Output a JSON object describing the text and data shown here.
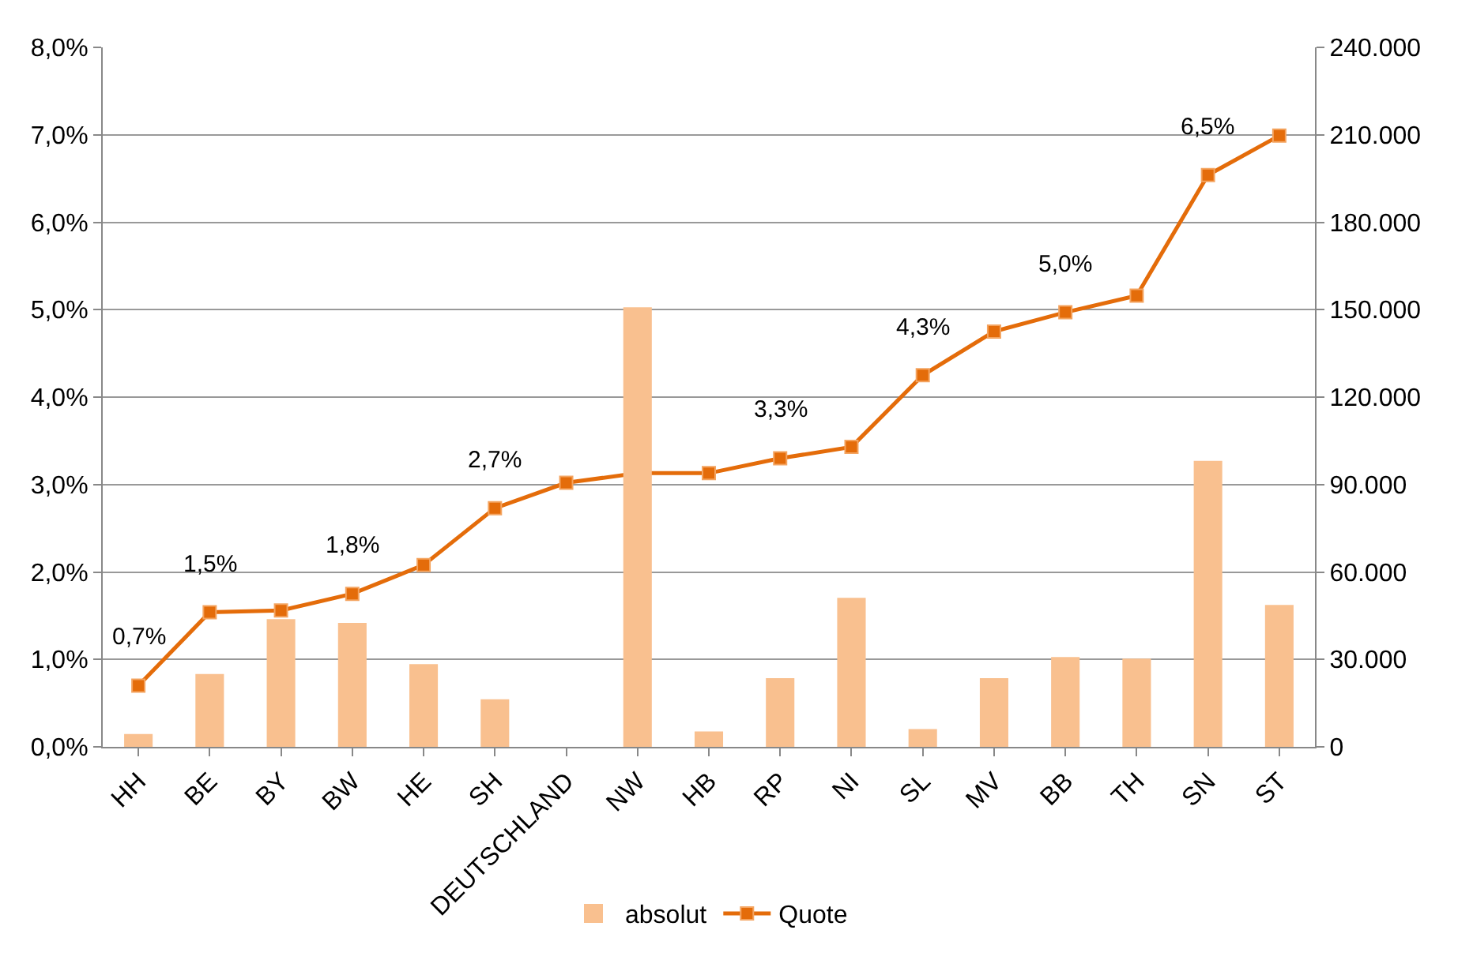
{
  "chart_data": {
    "type": "bar",
    "categories": [
      "HH",
      "BE",
      "BY",
      "BW",
      "HE",
      "SH",
      "DEUTSCHLAND",
      "NW",
      "HB",
      "RP",
      "NI",
      "SL",
      "MV",
      "BB",
      "TH",
      "SN",
      "ST"
    ],
    "series": [
      {
        "name": "absolut",
        "axis": "y2",
        "color": "#f9c08f",
        "values": [
          4400,
          25000,
          43800,
          42500,
          28400,
          16300,
          null,
          150800,
          5300,
          23600,
          51100,
          6100,
          23600,
          30800,
          30300,
          98100,
          48700
        ]
      },
      {
        "name": "Quote",
        "type": "line",
        "axis": "y",
        "color": "#e46c0a",
        "marker": "square",
        "values": [
          0.7,
          1.54,
          1.56,
          1.75,
          2.08,
          2.73,
          3.02,
          3.13,
          3.13,
          3.3,
          3.43,
          4.25,
          4.75,
          4.97,
          5.16,
          6.54,
          6.99
        ],
        "value_labels": [
          "0,7%",
          "1,5%",
          null,
          "1,8%",
          null,
          "2,7%",
          null,
          null,
          null,
          "3,3%",
          null,
          "4,3%",
          null,
          "5,0%",
          null,
          "6,5%",
          null
        ]
      }
    ],
    "ylim": [
      0,
      8
    ],
    "yticks": [
      {
        "value": 0,
        "label": "0,0%"
      },
      {
        "value": 1,
        "label": "1,0%"
      },
      {
        "value": 2,
        "label": "2,0%"
      },
      {
        "value": 3,
        "label": "3,0%"
      },
      {
        "value": 4,
        "label": "4,0%"
      },
      {
        "value": 5,
        "label": "5,0%"
      },
      {
        "value": 6,
        "label": "6,0%"
      },
      {
        "value": 7,
        "label": "7,0%"
      },
      {
        "value": 8,
        "label": "8,0%"
      }
    ],
    "y2lim": [
      0,
      240000
    ],
    "y2ticks": [
      0,
      {
        "value": 30000,
        "label": "30.000"
      },
      {
        "value": 60000,
        "label": "60.000"
      },
      {
        "value": 90000,
        "label": "90.000"
      },
      {
        "value": 120000,
        "label": "120.000"
      },
      {
        "value": 150000,
        "label": "150.000"
      },
      {
        "value": 180000,
        "label": "180.000"
      },
      {
        "value": 210000,
        "label": "210.000"
      },
      {
        "value": 240000,
        "label": "240.000"
      }
    ],
    "grid": "y",
    "legend": "bottom"
  }
}
